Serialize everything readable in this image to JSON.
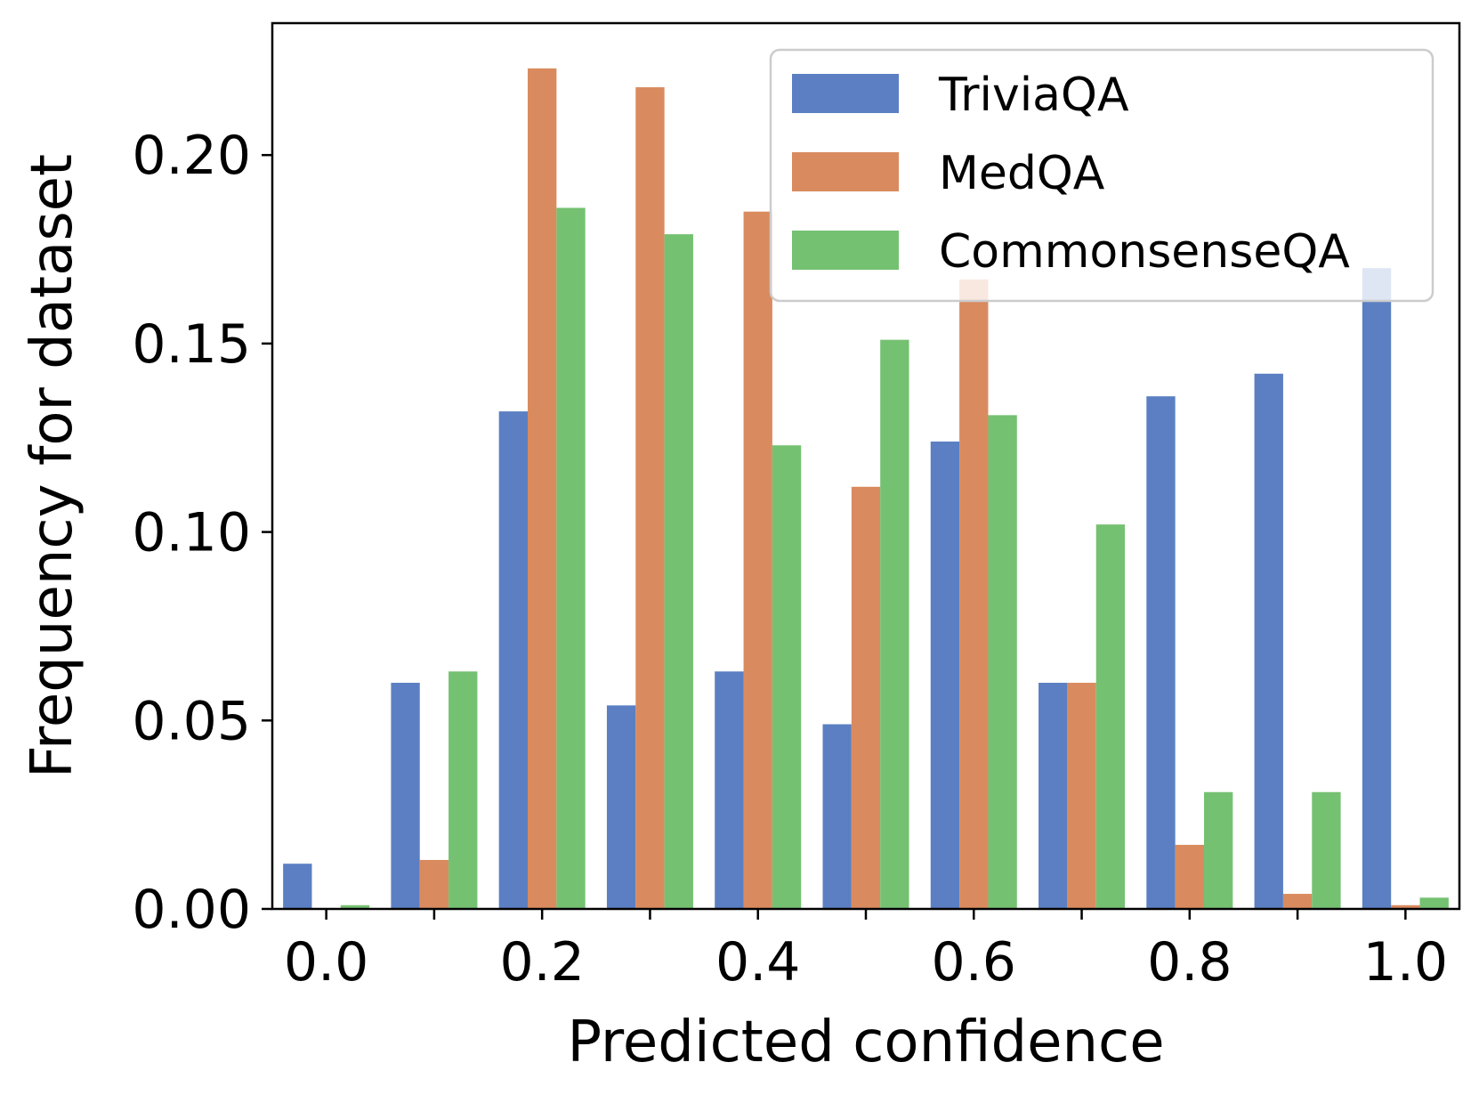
{
  "chart_data": {
    "type": "bar",
    "xlabel": "Predicted confidence",
    "ylabel": "Frequency for dataset",
    "x": [
      0.0,
      0.1,
      0.2,
      0.3,
      0.4,
      0.5,
      0.6,
      0.7,
      0.8,
      0.9,
      1.0
    ],
    "xlim": [
      -0.05,
      1.05
    ],
    "ylim": [
      0,
      0.235
    ],
    "xticks": [
      "0.0",
      "0.2",
      "0.4",
      "0.6",
      "0.8",
      "1.0"
    ],
    "xtick_values": [
      0.0,
      0.2,
      0.4,
      0.6,
      0.8,
      1.0
    ],
    "minor_xtick_values": [
      0.1,
      0.3,
      0.5,
      0.7,
      0.9
    ],
    "yticks": [
      "0.00",
      "0.05",
      "0.10",
      "0.15",
      "0.20"
    ],
    "ytick_values": [
      0.0,
      0.05,
      0.1,
      0.15,
      0.2
    ],
    "grid": false,
    "legend_position": "top-right",
    "series": [
      {
        "name": "TriviaQA",
        "color": "#5b7fc2",
        "values": [
          0.012,
          0.06,
          0.132,
          0.054,
          0.063,
          0.049,
          0.124,
          0.06,
          0.136,
          0.142,
          0.17
        ]
      },
      {
        "name": "MedQA",
        "color": "#d98b5f",
        "values": [
          0.0,
          0.013,
          0.223,
          0.218,
          0.185,
          0.112,
          0.167,
          0.06,
          0.017,
          0.004,
          0.001
        ]
      },
      {
        "name": "CommonsenseQA",
        "color": "#75c172",
        "values": [
          0.001,
          0.063,
          0.186,
          0.179,
          0.123,
          0.151,
          0.131,
          0.102,
          0.031,
          0.031,
          0.003
        ]
      }
    ]
  }
}
